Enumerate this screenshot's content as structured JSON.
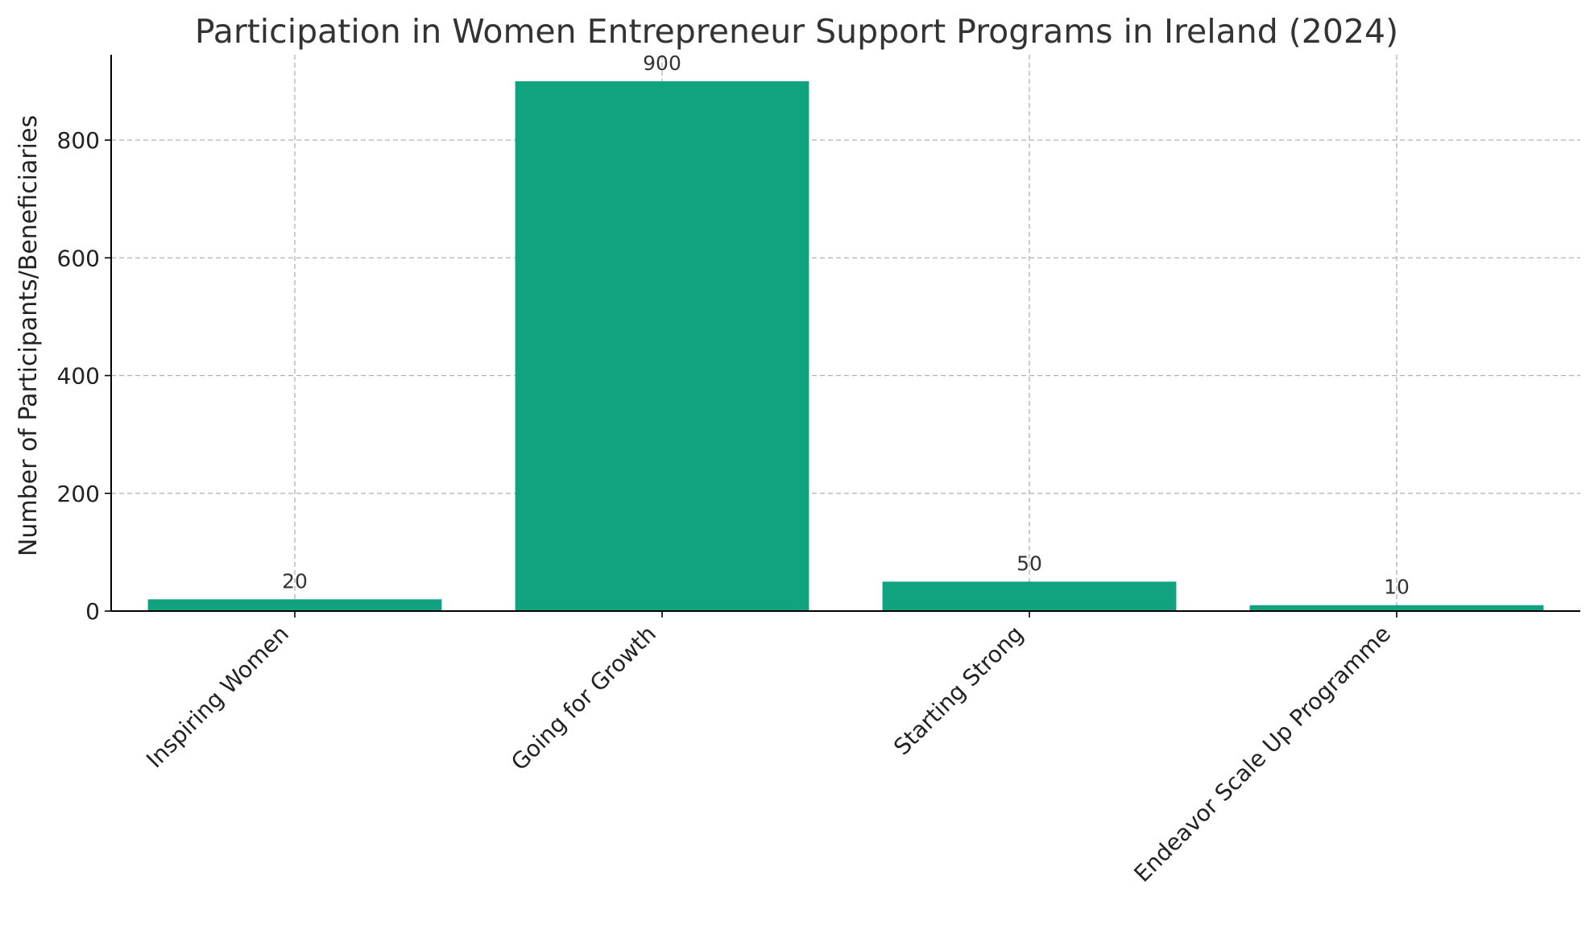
{
  "chart_data": {
    "type": "bar",
    "title": "Participation in Women Entrepreneur Support Programs in Ireland (2024)",
    "xlabel": "",
    "ylabel": "Number of Participants/Beneficiaries",
    "categories": [
      "Inspiring Women",
      "Going for Growth",
      "Starting Strong",
      "Endeavor Scale Up Programme"
    ],
    "values": [
      20,
      900,
      50,
      10
    ],
    "data_labels": [
      "20",
      "900",
      "50",
      "10"
    ],
    "ylim": [
      0,
      945
    ],
    "yticks": [
      0,
      200,
      400,
      600,
      800
    ],
    "ytick_labels": [
      "0",
      "200",
      "400",
      "600",
      "800"
    ],
    "bar_color": "#11a27f",
    "grid": true,
    "legend": "none"
  }
}
